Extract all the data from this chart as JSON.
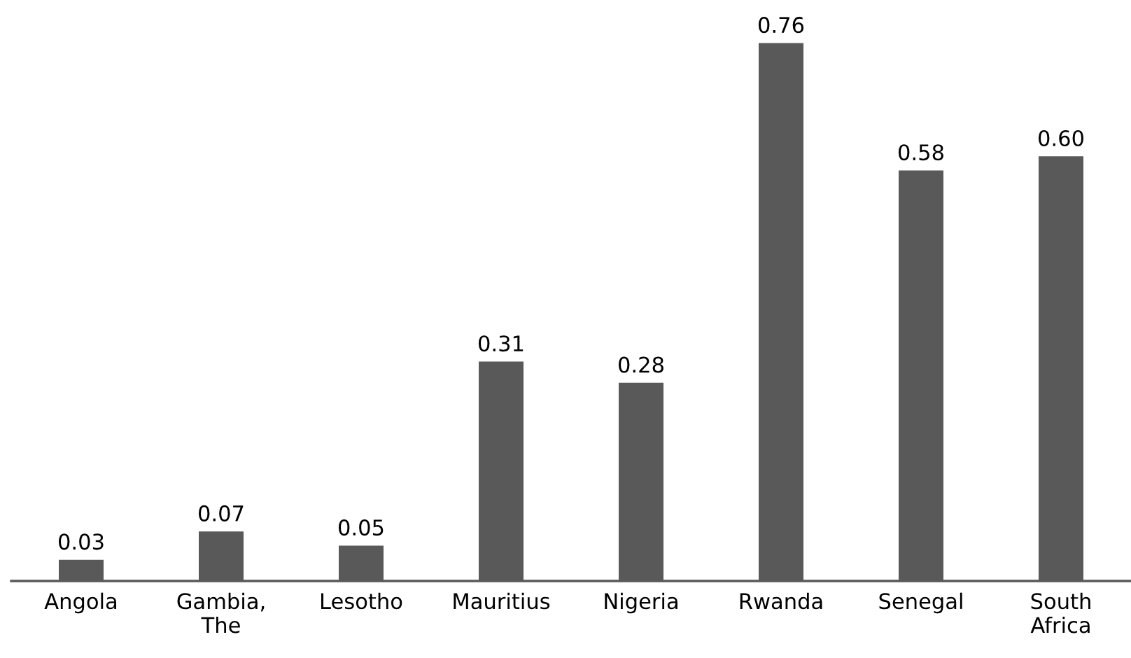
{
  "chart_data": {
    "type": "bar",
    "categories": [
      "Angola",
      "Gambia, The",
      "Lesotho",
      "Mauritius",
      "Nigeria",
      "Rwanda",
      "Senegal",
      "South Africa"
    ],
    "values": [
      0.03,
      0.07,
      0.05,
      0.31,
      0.28,
      0.76,
      0.58,
      0.6
    ],
    "value_labels": [
      "0.03",
      "0.07",
      "0.05",
      "0.31",
      "0.28",
      "0.76",
      "0.58",
      "0.60"
    ],
    "color": "#595959",
    "tick_labels": "x",
    "grid": false,
    "legend": false
  }
}
